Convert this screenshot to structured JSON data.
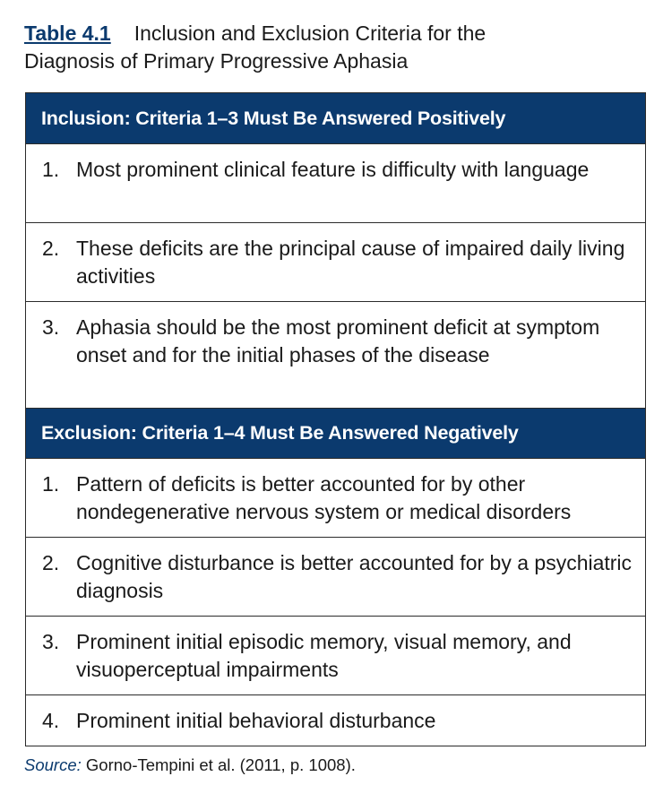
{
  "caption": {
    "table_label": "Table 4.1",
    "title_line1": "Inclusion and Exclusion Criteria for the",
    "title_line2": "Diagnosis of Primary Progressive Aphasia"
  },
  "inclusion": {
    "header": "Inclusion: Criteria 1–3 Must Be Answered Positively",
    "items": [
      {
        "num": "1.",
        "text": "Most prominent clinical feature is difficulty with language"
      },
      {
        "num": "2.",
        "text": "These deficits are the principal cause of impaired daily living activities"
      },
      {
        "num": "3.",
        "text": "Aphasia should be the most prominent deficit at symptom onset and for the initial phases of the disease"
      }
    ]
  },
  "exclusion": {
    "header": "Exclusion: Criteria 1–4 Must Be Answered Negatively",
    "items": [
      {
        "num": "1.",
        "text": "Pattern of deficits is better accounted for by other nondegenerative nervous system or medical disorders"
      },
      {
        "num": "2.",
        "text": "Cognitive disturbance is better accounted for by a psychiatric diagnosis"
      },
      {
        "num": "3.",
        "text": "Prominent initial episodic memory, visual memory, and visuoperceptual impairments"
      },
      {
        "num": "4.",
        "text": "Prominent initial behavioral disturbance"
      }
    ]
  },
  "source": {
    "label": "Source:",
    "text": " Gorno-Tempini et al. (2011, p. 1008)."
  },
  "colors": {
    "header_bg": "#0b3a6e",
    "border": "#2b2b2b"
  }
}
